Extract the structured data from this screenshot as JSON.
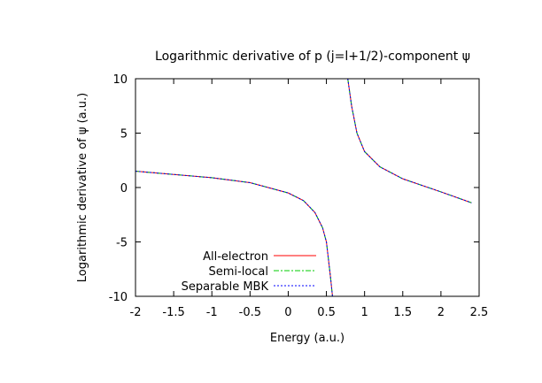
{
  "chart_data": {
    "type": "line",
    "title": "Logarithmic derivative of p (j=l+1/2)-component ψ",
    "xlabel": "Energy (a.u.)",
    "ylabel": "Logarithmic derivative of ψ (a.u.)",
    "xlim": [
      -2,
      2.5
    ],
    "ylim": [
      -10,
      10
    ],
    "x_ticks": [
      -2,
      -1.5,
      -1,
      -0.5,
      0,
      0.5,
      1,
      1.5,
      2,
      2.5
    ],
    "y_ticks": [
      -10,
      -5,
      0,
      5,
      10
    ],
    "x_tick_labels": [
      "-2",
      "-1.5",
      "-1",
      "-0.5",
      "0",
      "0.5",
      "1",
      "1.5",
      "2",
      "2.5"
    ],
    "y_tick_labels": [
      "-10",
      "-5",
      "0",
      "5",
      "10"
    ],
    "grid": false,
    "legend_position": "bottom-left",
    "series": [
      {
        "name": "All-electron",
        "color": "#ff0000",
        "dash": "solid",
        "segments": [
          [
            [
              -2.0,
              1.5
            ],
            [
              -1.5,
              1.2
            ],
            [
              -1.0,
              0.9
            ],
            [
              -0.5,
              0.45
            ],
            [
              0.0,
              -0.5
            ],
            [
              0.2,
              -1.2
            ],
            [
              0.35,
              -2.3
            ],
            [
              0.45,
              -3.7
            ],
            [
              0.5,
              -5.0
            ],
            [
              0.55,
              -8.0
            ],
            [
              0.58,
              -10.0
            ]
          ],
          [
            [
              0.78,
              10.0
            ],
            [
              0.83,
              7.5
            ],
            [
              0.9,
              5.0
            ],
            [
              1.0,
              3.3
            ],
            [
              1.2,
              1.9
            ],
            [
              1.5,
              0.8
            ],
            [
              2.0,
              -0.4
            ],
            [
              2.4,
              -1.4
            ]
          ]
        ]
      },
      {
        "name": "Semi-local",
        "color": "#00cc00",
        "dash": "dashdot",
        "segments": [
          [
            [
              -2.0,
              1.5
            ],
            [
              -1.5,
              1.2
            ],
            [
              -1.0,
              0.9
            ],
            [
              -0.5,
              0.45
            ],
            [
              0.0,
              -0.5
            ],
            [
              0.2,
              -1.2
            ],
            [
              0.35,
              -2.3
            ],
            [
              0.45,
              -3.7
            ],
            [
              0.5,
              -5.0
            ],
            [
              0.55,
              -8.0
            ],
            [
              0.58,
              -10.0
            ]
          ],
          [
            [
              0.78,
              10.0
            ],
            [
              0.83,
              7.5
            ],
            [
              0.9,
              5.0
            ],
            [
              1.0,
              3.3
            ],
            [
              1.2,
              1.9
            ],
            [
              1.5,
              0.8
            ],
            [
              2.0,
              -0.4
            ],
            [
              2.4,
              -1.4
            ]
          ]
        ]
      },
      {
        "name": "Separable MBK",
        "color": "#0000ff",
        "dash": "dotted",
        "segments": [
          [
            [
              -2.0,
              1.5
            ],
            [
              -1.5,
              1.2
            ],
            [
              -1.0,
              0.9
            ],
            [
              -0.5,
              0.45
            ],
            [
              0.0,
              -0.5
            ],
            [
              0.2,
              -1.2
            ],
            [
              0.35,
              -2.3
            ],
            [
              0.45,
              -3.7
            ],
            [
              0.5,
              -5.0
            ],
            [
              0.55,
              -8.0
            ],
            [
              0.58,
              -10.0
            ]
          ],
          [
            [
              0.78,
              10.0
            ],
            [
              0.83,
              7.5
            ],
            [
              0.9,
              5.0
            ],
            [
              1.0,
              3.3
            ],
            [
              1.2,
              1.9
            ],
            [
              1.5,
              0.8
            ],
            [
              2.0,
              -0.4
            ],
            [
              2.4,
              -1.4
            ]
          ]
        ]
      }
    ]
  }
}
